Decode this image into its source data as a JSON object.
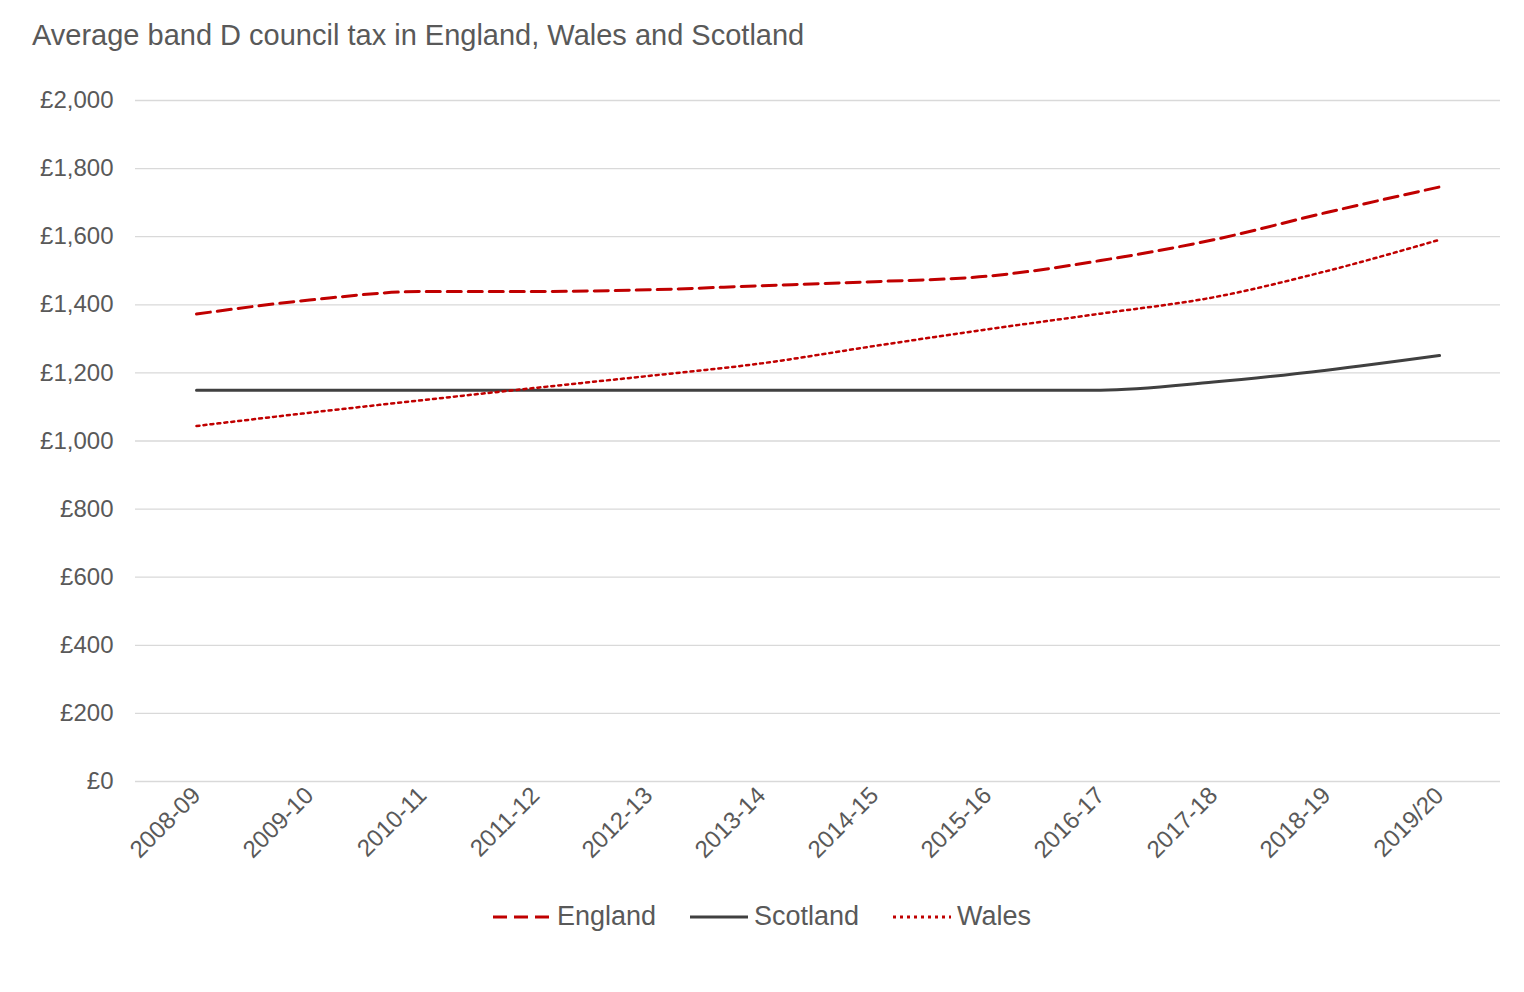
{
  "chart_data": {
    "type": "line",
    "title": "Average band D council tax in England, Wales and Scotland",
    "categories": [
      "2008-09",
      "2009-10",
      "2010-11",
      "2011-12",
      "2012-13",
      "2013-14",
      "2014-15",
      "2015-16",
      "2016-17",
      "2017-18",
      "2018-19",
      "2019/20"
    ],
    "series": [
      {
        "name": "England",
        "color": "#c00000",
        "line_style": "dashed",
        "values": [
          1373,
          1414,
          1439,
          1439,
          1444,
          1456,
          1468,
          1484,
          1530,
          1591,
          1671,
          1746
        ]
      },
      {
        "name": "Scotland",
        "color": "#404040",
        "line_style": "solid",
        "values": [
          1149,
          1149,
          1149,
          1149,
          1149,
          1149,
          1149,
          1149,
          1149,
          1173,
          1208,
          1251
        ]
      },
      {
        "name": "Wales",
        "color": "#c00000",
        "line_style": "dotted",
        "values": [
          1044,
          1083,
          1120,
          1156,
          1191,
          1228,
          1279,
          1328,
          1374,
          1422,
          1499,
          1591
        ]
      }
    ],
    "ylim": [
      0,
      2000
    ],
    "yticks": [
      {
        "value": 0,
        "label": "£0"
      },
      {
        "value": 200,
        "label": "£200"
      },
      {
        "value": 400,
        "label": "£400"
      },
      {
        "value": 600,
        "label": "£600"
      },
      {
        "value": 800,
        "label": "£800"
      },
      {
        "value": 1000,
        "label": "£1,000"
      },
      {
        "value": 1200,
        "label": "£1,200"
      },
      {
        "value": 1400,
        "label": "£1,400"
      },
      {
        "value": 1600,
        "label": "£1,600"
      },
      {
        "value": 1800,
        "label": "£1,800"
      },
      {
        "value": 2000,
        "label": "£2,000"
      }
    ],
    "grid": true,
    "legend": "bottom"
  }
}
